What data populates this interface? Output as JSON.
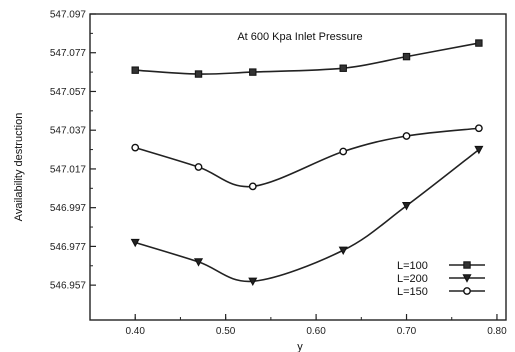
{
  "chart_data": {
    "type": "line",
    "title": "At 600 Kpa Inlet Pressure",
    "xlabel": "y",
    "ylabel": "Availability destruction",
    "xlim": [
      0.35,
      0.81
    ],
    "ylim": [
      546.939,
      547.097
    ],
    "xticks": [
      0.4,
      0.5,
      0.6,
      0.7,
      0.8
    ],
    "xtick_labels": [
      "0.40",
      "0.50",
      "0.60",
      "0.70",
      "0.80"
    ],
    "yticks": [
      546.957,
      546.977,
      546.997,
      547.017,
      547.037,
      547.057,
      547.077,
      547.097
    ],
    "ytick_labels": [
      "546.957",
      "546.977",
      "546.997",
      "547.017",
      "547.037",
      "547.057",
      "547.077",
      "547.097"
    ],
    "grid": false,
    "legend_position": "bottom-right",
    "series": [
      {
        "name": "L=100",
        "marker": "square",
        "x": [
          0.4,
          0.47,
          0.53,
          0.63,
          0.7,
          0.78
        ],
        "y": [
          547.068,
          547.066,
          547.067,
          547.069,
          547.075,
          547.082
        ]
      },
      {
        "name": "L=200",
        "marker": "triangle-down",
        "x": [
          0.4,
          0.47,
          0.53,
          0.63,
          0.7,
          0.78
        ],
        "y": [
          546.979,
          546.969,
          546.959,
          546.975,
          546.998,
          547.027
        ]
      },
      {
        "name": "L=150",
        "marker": "circle",
        "x": [
          0.4,
          0.47,
          0.53,
          0.63,
          0.7,
          0.78
        ],
        "y": [
          547.028,
          547.018,
          547.008,
          547.026,
          547.034,
          547.038
        ]
      }
    ]
  }
}
